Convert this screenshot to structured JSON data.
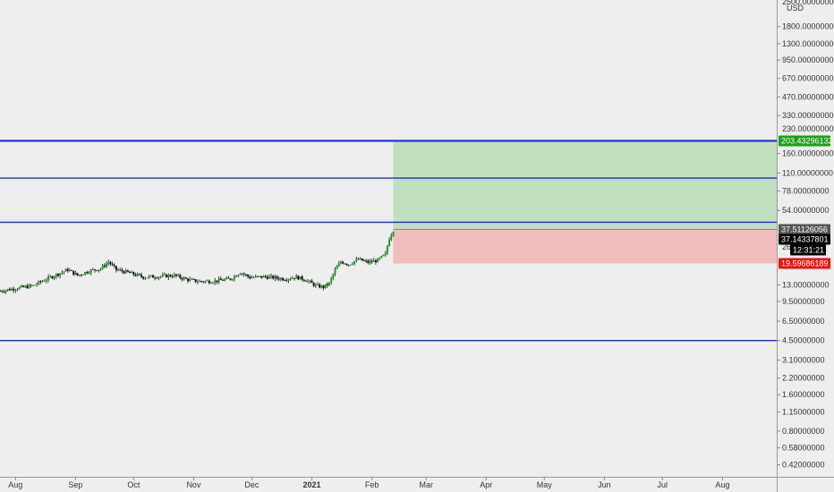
{
  "currency": "USD",
  "price_axis": {
    "scale": "log",
    "tick_labels": [
      {
        "label": "1800.00000000",
        "value": 1800
      },
      {
        "label": "1300.00000000",
        "value": 1300
      },
      {
        "label": "950.00000000",
        "value": 950
      },
      {
        "label": "670.00000000",
        "value": 670
      },
      {
        "label": "470.00000000",
        "value": 470
      },
      {
        "label": "330.00000000",
        "value": 330
      },
      {
        "label": "160.00000000",
        "value": 160
      },
      {
        "label": "110.00000000",
        "value": 110
      },
      {
        "label": "78.00000000",
        "value": 78
      },
      {
        "label": "54.00000000",
        "value": 54
      },
      {
        "label": "13.00000000",
        "value": 13
      },
      {
        "label": "9.50000000",
        "value": 9.5
      },
      {
        "label": "6.50000000",
        "value": 6.5
      },
      {
        "label": "4.50000000",
        "value": 4.5
      },
      {
        "label": "3.10000000",
        "value": 3.1
      },
      {
        "label": "2.20000000",
        "value": 2.2
      },
      {
        "label": "1.60000000",
        "value": 1.6
      },
      {
        "label": "1.15000000",
        "value": 1.15
      },
      {
        "label": "0.80000000",
        "value": 0.8
      },
      {
        "label": "0.58000000",
        "value": 0.58
      },
      {
        "label": "0.42000000",
        "value": 0.42
      }
    ],
    "top_partial_label": "2500.00000000",
    "partial_label_near_target": "230.00000000",
    "partial_label_near_price": "26."
  },
  "time_axis": {
    "labels": [
      {
        "label": "Aug",
        "date": "2020-08-01",
        "bold": false
      },
      {
        "label": "Sep",
        "date": "2020-09-01",
        "bold": false
      },
      {
        "label": "Oct",
        "date": "2020-10-01",
        "bold": false
      },
      {
        "label": "Nov",
        "date": "2020-11-01",
        "bold": false
      },
      {
        "label": "Dec",
        "date": "2020-12-01",
        "bold": false
      },
      {
        "label": "2021",
        "date": "2021-01-01",
        "bold": true
      },
      {
        "label": "Feb",
        "date": "2021-02-01",
        "bold": false
      },
      {
        "label": "Mar",
        "date": "2021-03-01",
        "bold": false
      },
      {
        "label": "Apr",
        "date": "2021-04-01",
        "bold": false
      },
      {
        "label": "May",
        "date": "2021-05-01",
        "bold": false
      },
      {
        "label": "Jun",
        "date": "2021-06-01",
        "bold": false
      },
      {
        "label": "Jul",
        "date": "2021-07-01",
        "bold": false
      },
      {
        "label": "Aug",
        "date": "2021-08-01",
        "bold": false
      }
    ]
  },
  "horizontal_levels": [
    {
      "value": 203.43296132,
      "color": "#1b2bd6",
      "weight": "thick"
    },
    {
      "value": 100,
      "color": "#1b2bd6",
      "weight": "thin"
    },
    {
      "value": 43,
      "color": "#1b2bd6",
      "weight": "thin"
    },
    {
      "value": 4.5,
      "color": "#1b2bd6",
      "weight": "thin"
    }
  ],
  "position_tool": {
    "start_date": "2021-02-12",
    "entry": 37.51126056,
    "target": 203.43296132,
    "stop": 19.59686189,
    "profit_color": "#bfdfbf",
    "loss_color": "#f1bcbc"
  },
  "price_badges": {
    "target": {
      "text": "203.43296132",
      "bg": "#1e9e1e",
      "fg": "#ffffff"
    },
    "entry": {
      "text": "37.51126056",
      "bg": "#555555",
      "fg": "#ffffff"
    },
    "last_price": {
      "text": "37.14337801",
      "bg": "#000000",
      "fg": "#ffffff"
    },
    "countdown": {
      "text": "12:31:21",
      "bg": "#000000",
      "fg": "#ffffff"
    },
    "stop": {
      "text": "19.59686189",
      "bg": "#ee1111",
      "fg": "#ffffff"
    }
  },
  "chart_data": {
    "type": "candlestick",
    "title": "",
    "y_scale": "log",
    "ylim": [
      0.37,
      2700
    ],
    "x_range": [
      "2020-07-24",
      "2021-08-29"
    ],
    "grid": false,
    "series_colors": {
      "up": "#1e9e1e",
      "down": "#111111"
    },
    "close_path": [
      {
        "date": "2020-07-24",
        "price": 11.6
      },
      {
        "date": "2020-07-31",
        "price": 12.1
      },
      {
        "date": "2020-08-10",
        "price": 12.8
      },
      {
        "date": "2020-08-18",
        "price": 14.8
      },
      {
        "date": "2020-08-24",
        "price": 16.3
      },
      {
        "date": "2020-08-28",
        "price": 17.4
      },
      {
        "date": "2020-09-02",
        "price": 15.6
      },
      {
        "date": "2020-09-08",
        "price": 17.0
      },
      {
        "date": "2020-09-14",
        "price": 17.8
      },
      {
        "date": "2020-09-18",
        "price": 20.2
      },
      {
        "date": "2020-09-22",
        "price": 17.4
      },
      {
        "date": "2020-09-28",
        "price": 16.5
      },
      {
        "date": "2020-10-06",
        "price": 15.1
      },
      {
        "date": "2020-10-14",
        "price": 15.3
      },
      {
        "date": "2020-10-22",
        "price": 15.6
      },
      {
        "date": "2020-10-28",
        "price": 14.5
      },
      {
        "date": "2020-11-03",
        "price": 13.9
      },
      {
        "date": "2020-11-12",
        "price": 14.0
      },
      {
        "date": "2020-11-20",
        "price": 14.6
      },
      {
        "date": "2020-11-25",
        "price": 16.6
      },
      {
        "date": "2020-11-30",
        "price": 15.0
      },
      {
        "date": "2020-12-08",
        "price": 15.2
      },
      {
        "date": "2020-12-18",
        "price": 14.6
      },
      {
        "date": "2020-12-24",
        "price": 15.1
      },
      {
        "date": "2020-12-29",
        "price": 14.3
      },
      {
        "date": "2021-01-03",
        "price": 12.8
      },
      {
        "date": "2021-01-07",
        "price": 12.5
      },
      {
        "date": "2021-01-10",
        "price": 13.4
      },
      {
        "date": "2021-01-13",
        "price": 17.3
      },
      {
        "date": "2021-01-16",
        "price": 20.3
      },
      {
        "date": "2021-01-20",
        "price": 19.3
      },
      {
        "date": "2021-01-25",
        "price": 21.2
      },
      {
        "date": "2021-01-30",
        "price": 20.0
      },
      {
        "date": "2021-02-04",
        "price": 20.8
      },
      {
        "date": "2021-02-08",
        "price": 23.3
      },
      {
        "date": "2021-02-10",
        "price": 32.0
      },
      {
        "date": "2021-02-12",
        "price": 37.1
      }
    ]
  }
}
